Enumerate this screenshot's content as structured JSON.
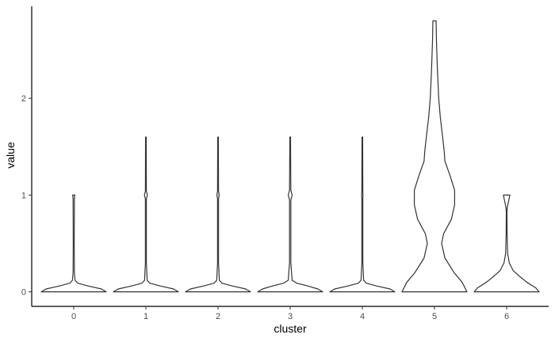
{
  "chart_data": {
    "type": "violin",
    "xlabel": "cluster",
    "ylabel": "value",
    "categories": [
      "0",
      "1",
      "2",
      "3",
      "4",
      "5",
      "6"
    ],
    "yticks": [
      "0",
      "1",
      "2"
    ],
    "ylim": [
      -0.15,
      2.95
    ],
    "grid": false,
    "legend": "none",
    "violins": [
      {
        "cluster": "0",
        "max": 1.0,
        "profile": [
          [
            0,
            1.0
          ],
          [
            0.03,
            0.85
          ],
          [
            0.06,
            0.45
          ],
          [
            0.09,
            0.12
          ],
          [
            0.12,
            0.04
          ],
          [
            0.2,
            0.02
          ],
          [
            0.5,
            0.015
          ],
          [
            0.97,
            0.02
          ],
          [
            1.0,
            0.035
          ]
        ]
      },
      {
        "cluster": "1",
        "max": 1.6,
        "profile": [
          [
            0,
            1.0
          ],
          [
            0.03,
            0.85
          ],
          [
            0.06,
            0.45
          ],
          [
            0.09,
            0.12
          ],
          [
            0.12,
            0.04
          ],
          [
            0.3,
            0.015
          ],
          [
            0.96,
            0.015
          ],
          [
            1.0,
            0.045
          ],
          [
            1.04,
            0.015
          ],
          [
            1.6,
            0.01
          ]
        ]
      },
      {
        "cluster": "2",
        "max": 1.6,
        "profile": [
          [
            0,
            1.0
          ],
          [
            0.03,
            0.85
          ],
          [
            0.06,
            0.45
          ],
          [
            0.09,
            0.12
          ],
          [
            0.12,
            0.04
          ],
          [
            0.3,
            0.015
          ],
          [
            0.96,
            0.015
          ],
          [
            1.0,
            0.035
          ],
          [
            1.04,
            0.015
          ],
          [
            1.6,
            0.01
          ]
        ]
      },
      {
        "cluster": "3",
        "max": 1.6,
        "profile": [
          [
            0,
            1.0
          ],
          [
            0.03,
            0.85
          ],
          [
            0.06,
            0.55
          ],
          [
            0.09,
            0.2
          ],
          [
            0.12,
            0.06
          ],
          [
            0.3,
            0.02
          ],
          [
            0.95,
            0.02
          ],
          [
            1.0,
            0.06
          ],
          [
            1.05,
            0.02
          ],
          [
            1.6,
            0.01
          ]
        ]
      },
      {
        "cluster": "4",
        "max": 1.6,
        "profile": [
          [
            0,
            1.0
          ],
          [
            0.03,
            0.85
          ],
          [
            0.06,
            0.45
          ],
          [
            0.09,
            0.12
          ],
          [
            0.12,
            0.04
          ],
          [
            0.3,
            0.015
          ],
          [
            0.96,
            0.015
          ],
          [
            1.0,
            0.02
          ],
          [
            1.04,
            0.015
          ],
          [
            1.6,
            0.01
          ]
        ]
      },
      {
        "cluster": "5",
        "max": 2.8,
        "profile": [
          [
            0,
            1.0
          ],
          [
            0.1,
            0.85
          ],
          [
            0.2,
            0.6
          ],
          [
            0.35,
            0.32
          ],
          [
            0.5,
            0.22
          ],
          [
            0.6,
            0.28
          ],
          [
            0.75,
            0.52
          ],
          [
            0.9,
            0.62
          ],
          [
            1.05,
            0.62
          ],
          [
            1.2,
            0.48
          ],
          [
            1.35,
            0.32
          ],
          [
            1.45,
            0.3
          ],
          [
            1.6,
            0.25
          ],
          [
            1.8,
            0.18
          ],
          [
            2.0,
            0.13
          ],
          [
            2.3,
            0.09
          ],
          [
            2.6,
            0.06
          ],
          [
            2.8,
            0.05
          ]
        ]
      },
      {
        "cluster": "6",
        "max": 1.0,
        "profile": [
          [
            0,
            1.0
          ],
          [
            0.04,
            0.9
          ],
          [
            0.1,
            0.62
          ],
          [
            0.16,
            0.4
          ],
          [
            0.22,
            0.2
          ],
          [
            0.3,
            0.08
          ],
          [
            0.4,
            0.03
          ],
          [
            0.6,
            0.015
          ],
          [
            0.82,
            0.01
          ],
          [
            0.87,
            0.02
          ],
          [
            0.92,
            0.05
          ],
          [
            1.0,
            0.1
          ]
        ]
      }
    ]
  }
}
